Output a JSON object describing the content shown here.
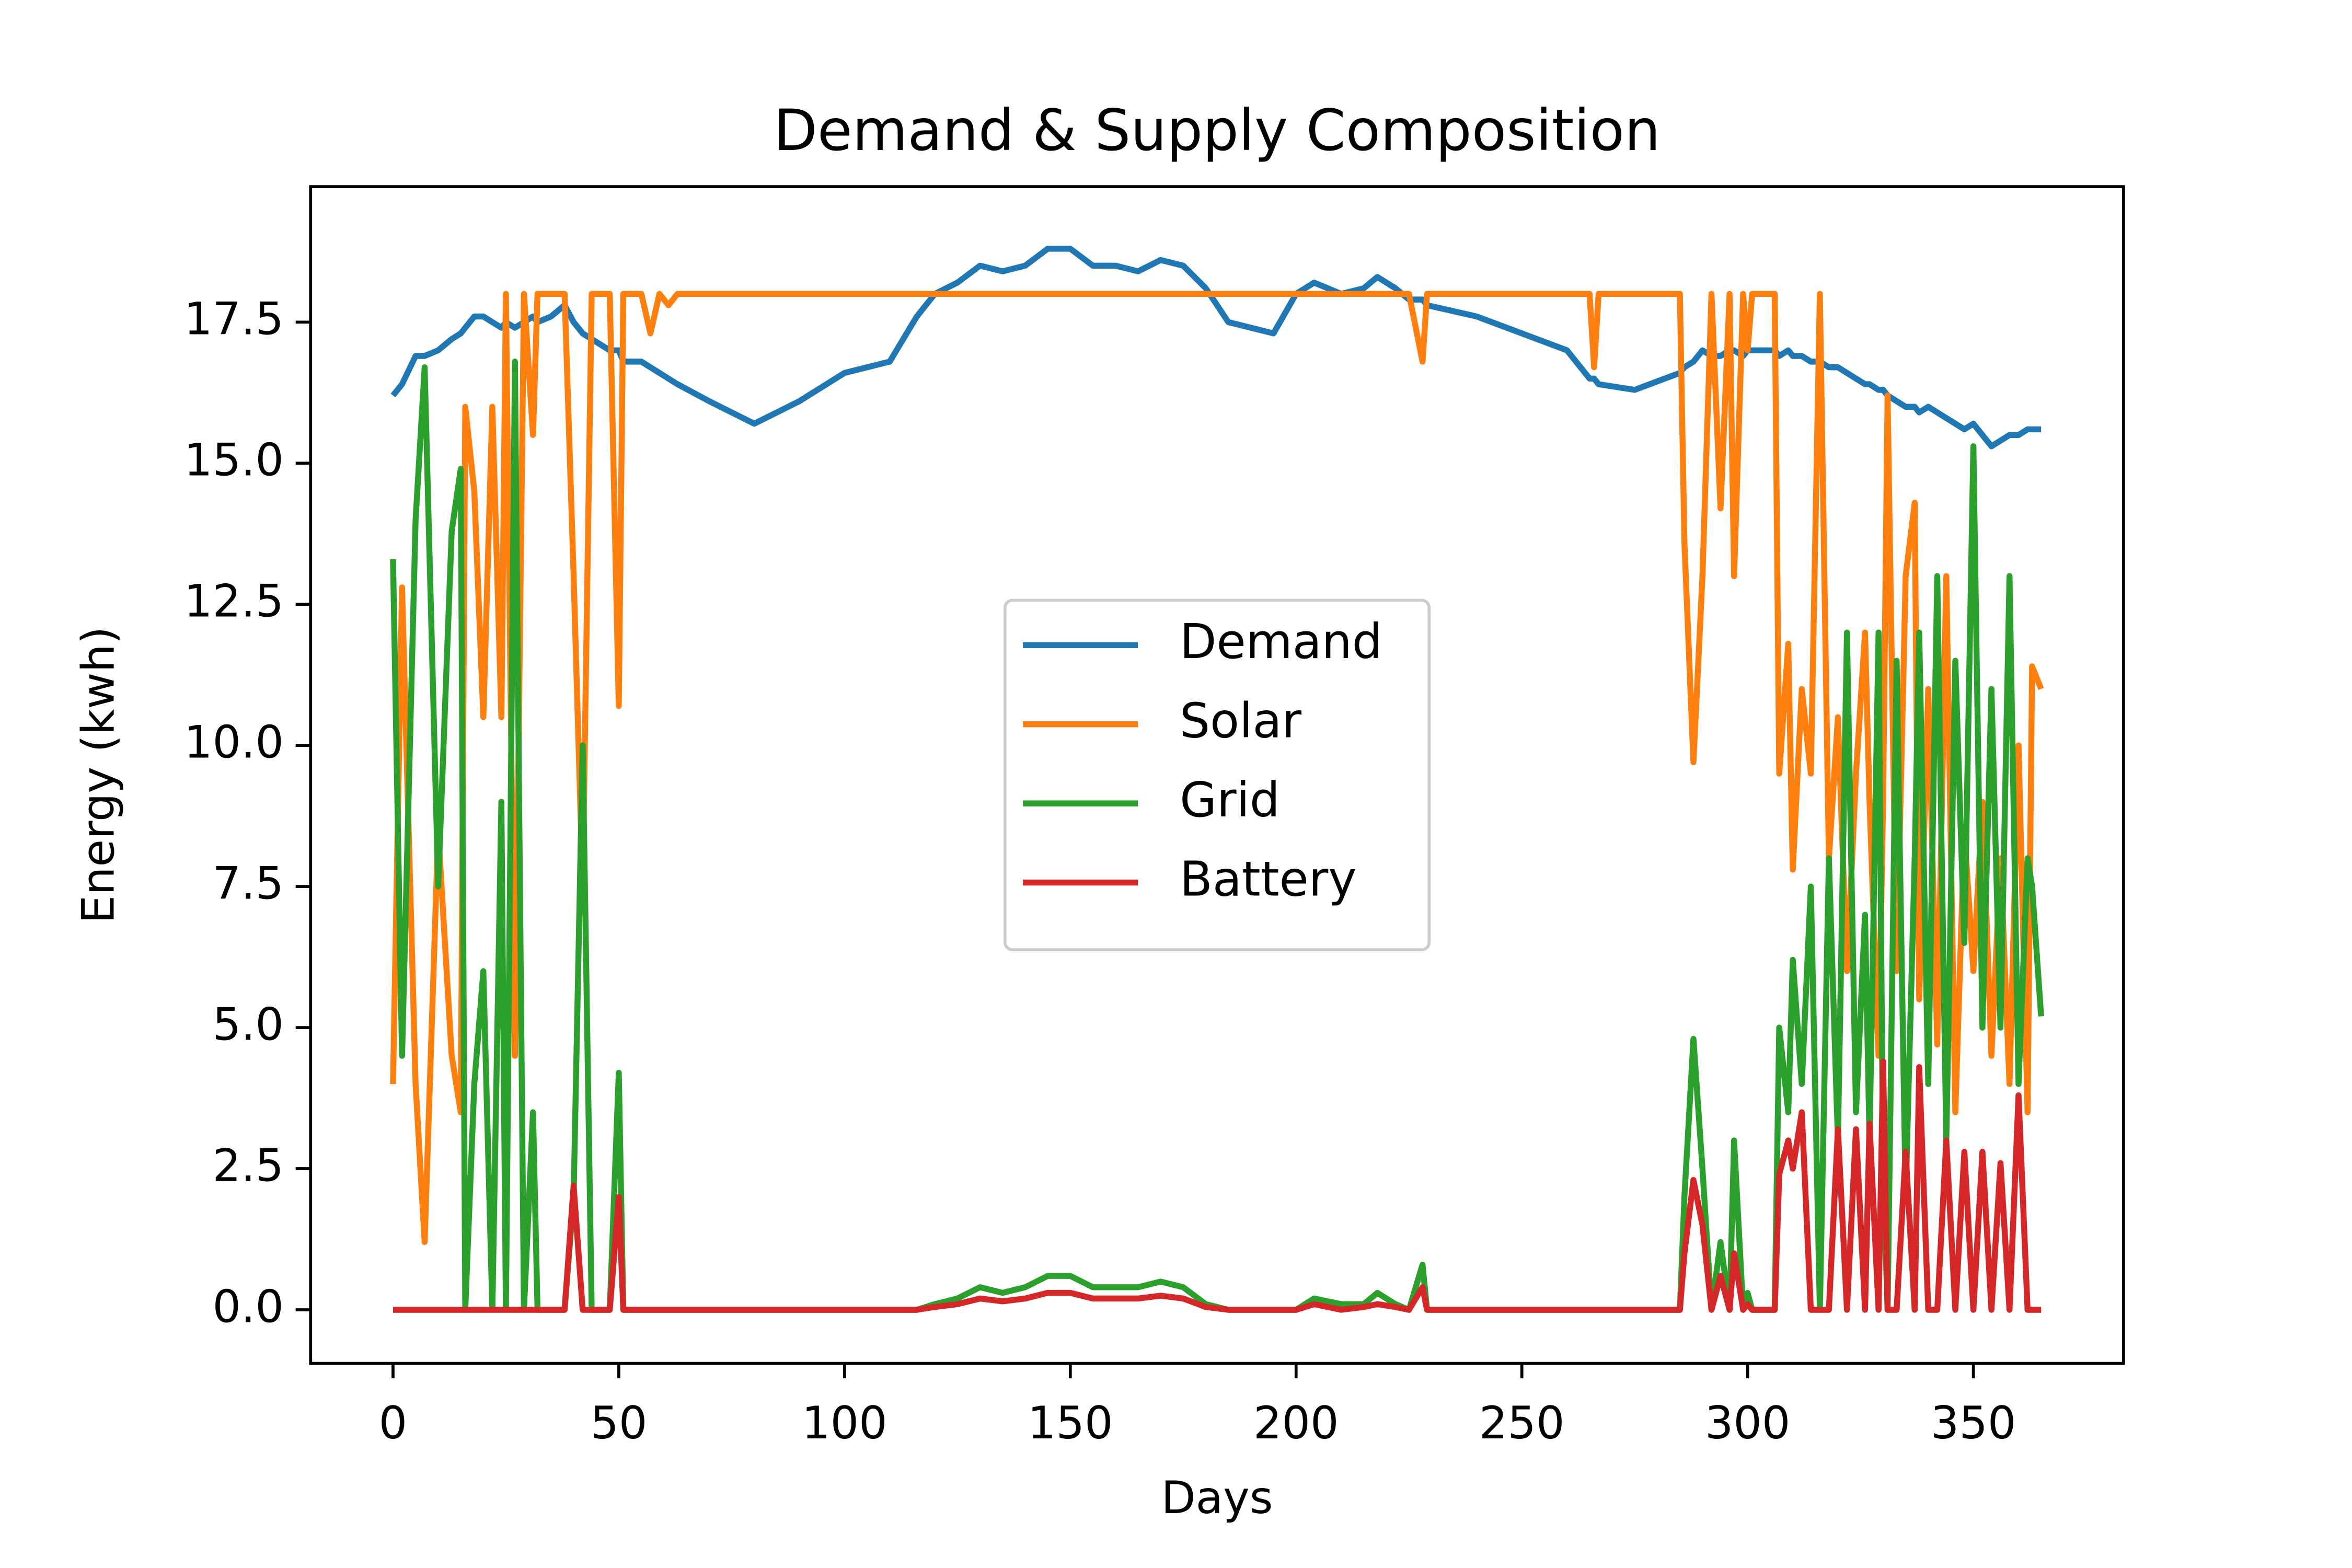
{
  "chart_data": {
    "type": "line",
    "title": "Demand & Supply Composition",
    "x_label": "Days",
    "y_label": "Energy (kwh)",
    "x": [
      0,
      2,
      5,
      7,
      10,
      13,
      15,
      16,
      18,
      20,
      22,
      24,
      25,
      27,
      29,
      31,
      32,
      35,
      38,
      40,
      42,
      44,
      48,
      50,
      51,
      55,
      57,
      59,
      61,
      63,
      70,
      80,
      90,
      100,
      110,
      116,
      120,
      125,
      130,
      135,
      140,
      145,
      150,
      155,
      160,
      165,
      170,
      175,
      180,
      185,
      190,
      195,
      200,
      204,
      210,
      215,
      218,
      222,
      225,
      228,
      229,
      240,
      250,
      260,
      265,
      266,
      267,
      275,
      285,
      286,
      288,
      290,
      292,
      294,
      296,
      297,
      299,
      300,
      301,
      306,
      307,
      309,
      310,
      312,
      314,
      316,
      318,
      320,
      322,
      324,
      326,
      327,
      329,
      330,
      331,
      333,
      335,
      337,
      338,
      340,
      342,
      344,
      346,
      348,
      350,
      352,
      354,
      356,
      358,
      360,
      362,
      363,
      365
    ],
    "series": [
      {
        "name": "Demand",
        "color": "#1f77b4",
        "values": [
          16.2,
          16.4,
          16.9,
          16.9,
          17.0,
          17.2,
          17.3,
          17.4,
          17.6,
          17.6,
          17.5,
          17.4,
          17.5,
          17.4,
          17.5,
          17.6,
          17.5,
          17.6,
          17.8,
          17.5,
          17.3,
          17.2,
          17.0,
          17.0,
          16.8,
          16.8,
          16.7,
          16.6,
          16.5,
          16.4,
          16.1,
          15.7,
          16.1,
          16.6,
          16.8,
          17.6,
          18.0,
          18.2,
          18.5,
          18.4,
          18.5,
          18.8,
          18.8,
          18.5,
          18.5,
          18.4,
          18.6,
          18.5,
          18.1,
          17.5,
          17.4,
          17.3,
          18.0,
          18.2,
          18.0,
          18.1,
          18.3,
          18.1,
          17.9,
          17.9,
          17.8,
          17.6,
          17.3,
          17.0,
          16.5,
          16.5,
          16.4,
          16.3,
          16.6,
          16.7,
          16.8,
          17.0,
          16.9,
          16.9,
          17.0,
          17.0,
          16.9,
          17.0,
          17.0,
          17.0,
          16.9,
          17.0,
          16.9,
          16.9,
          16.8,
          16.8,
          16.7,
          16.7,
          16.6,
          16.5,
          16.4,
          16.4,
          16.3,
          16.3,
          16.2,
          16.1,
          16.0,
          16.0,
          15.9,
          16.0,
          15.9,
          15.8,
          15.7,
          15.6,
          15.7,
          15.5,
          15.3,
          15.4,
          15.5,
          15.5,
          15.6,
          15.6,
          15.6
        ]
      },
      {
        "name": "Solar",
        "color": "#ff7f0e",
        "values": [
          4.0,
          12.8,
          4.0,
          1.2,
          8.5,
          4.5,
          3.5,
          16.0,
          14.5,
          10.5,
          16.0,
          10.5,
          18.0,
          4.5,
          18.0,
          15.5,
          18.0,
          18.0,
          18.0,
          13.0,
          7.5,
          18.0,
          18.0,
          10.7,
          18.0,
          18.0,
          17.3,
          18.0,
          17.8,
          18.0,
          18,
          18,
          18,
          18,
          18,
          18,
          18,
          18,
          18,
          18,
          18,
          18,
          18,
          18,
          18,
          18,
          18,
          18,
          18,
          18,
          18,
          18,
          18,
          18,
          18,
          18,
          18,
          18,
          18,
          16.8,
          18,
          18,
          18,
          18,
          18,
          16.7,
          18,
          18,
          18,
          13.6,
          9.7,
          13.0,
          18,
          14.2,
          18,
          13.0,
          18,
          17.0,
          18,
          18,
          9.5,
          11.8,
          7.8,
          11.0,
          9.5,
          18,
          8.0,
          10.5,
          6.0,
          9.5,
          12.0,
          9.0,
          4.5,
          9.0,
          16.2,
          6.0,
          13.0,
          14.3,
          5.5,
          11.0,
          4.7,
          13.0,
          3.5,
          8.5,
          6.0,
          9.0,
          4.5,
          8.0,
          4.0,
          10.0,
          3.5,
          11.4,
          11.0
        ]
      },
      {
        "name": "Grid",
        "color": "#2ca02c",
        "values": [
          13.3,
          4.5,
          14.0,
          16.7,
          7.5,
          13.8,
          14.9,
          0,
          4.0,
          6.0,
          0,
          9.0,
          0,
          16.8,
          0,
          3.5,
          0,
          0,
          0,
          2.0,
          10.0,
          0,
          0,
          4.2,
          0,
          0,
          0,
          0,
          0,
          0,
          0,
          0,
          0,
          0,
          0,
          0,
          0.1,
          0.2,
          0.4,
          0.3,
          0.4,
          0.6,
          0.6,
          0.4,
          0.4,
          0.4,
          0.5,
          0.4,
          0.1,
          0,
          0,
          0,
          0,
          0.2,
          0.1,
          0.1,
          0.3,
          0.1,
          0,
          0.8,
          0,
          0,
          0,
          0,
          0,
          0,
          0,
          0,
          0,
          2.0,
          4.8,
          2.5,
          0,
          1.2,
          0,
          3.0,
          0,
          0.3,
          0,
          0,
          5.0,
          3.5,
          6.2,
          4.0,
          7.5,
          0,
          8.0,
          3.0,
          12.0,
          3.5,
          7.0,
          3.0,
          12.0,
          2.5,
          0,
          11.5,
          2.0,
          8.0,
          12.0,
          4.0,
          13.0,
          3.0,
          11.5,
          6.5,
          15.3,
          5.0,
          11.0,
          5.0,
          13.0,
          4.0,
          8.0,
          7.5,
          5.2
        ]
      },
      {
        "name": "Battery",
        "color": "#d62728",
        "values": [
          0,
          0,
          0,
          0,
          0,
          0,
          0,
          0,
          0,
          0,
          0,
          0,
          0,
          0,
          0,
          0,
          0,
          0,
          0,
          2.2,
          0,
          0,
          0,
          2.0,
          0,
          0,
          0,
          0,
          0,
          0,
          0,
          0,
          0,
          0,
          0,
          0,
          0.05,
          0.1,
          0.2,
          0.15,
          0.2,
          0.3,
          0.3,
          0.2,
          0.2,
          0.2,
          0.25,
          0.2,
          0.05,
          0,
          0,
          0,
          0,
          0.1,
          0,
          0.05,
          0.1,
          0.05,
          0,
          0.4,
          0,
          0,
          0,
          0,
          0,
          0,
          0,
          0,
          0,
          1.0,
          2.3,
          1.5,
          0,
          0.6,
          0,
          1.0,
          0,
          0.1,
          0,
          0,
          2.4,
          3.0,
          2.5,
          3.5,
          0,
          0,
          0,
          3.2,
          0,
          3.2,
          0,
          3.3,
          0,
          4.4,
          0,
          0,
          2.8,
          0,
          4.3,
          0,
          0,
          3.0,
          0,
          2.8,
          0,
          2.8,
          0,
          2.6,
          0,
          3.8,
          0,
          0,
          0
        ]
      }
    ],
    "xlim": [
      -18.25,
      383.25
    ],
    "xticks": [
      0,
      50,
      100,
      150,
      200,
      250,
      300,
      350
    ],
    "ylim": [
      -0.95,
      19.9
    ],
    "yticks": [
      {
        "value": 0,
        "label": "0.0"
      },
      2.5,
      {
        "value": 5,
        "label": "5.0"
      },
      7.5,
      {
        "value": 10,
        "label": "10.0"
      },
      12.5,
      {
        "value": 15,
        "label": "15.0"
      },
      17.5
    ],
    "legend": "center",
    "grid": false
  }
}
